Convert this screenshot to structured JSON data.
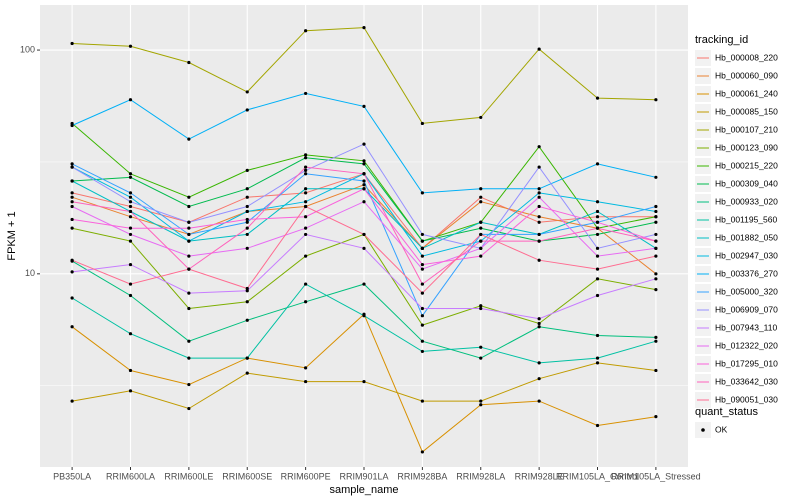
{
  "chart_data": {
    "type": "line",
    "x_label": "sample_name",
    "y_label": "FPKM + 1",
    "categories": [
      "PB350LA",
      "RRIM600LA",
      "RRIM600LE",
      "RRIM600SE",
      "RRIM600PE",
      "RRIM901LA",
      "RRIM928BA",
      "RRIM928LA",
      "RRIM928LE",
      "RRIM105LA_Control",
      "RRIM105LA_Stressed"
    ],
    "log_y": true,
    "ylim": [
      1.37,
      159
    ],
    "yticks": [
      10,
      100
    ],
    "grid": true,
    "legend_title": "tracking_id",
    "legend_position": "right",
    "legend2": {
      "title": "quant_status",
      "labels": [
        "OK"
      ]
    },
    "series": [
      {
        "name": "Hb_000008_220",
        "color": "#F8766D",
        "values": [
          23,
          20,
          17,
          22,
          23,
          28,
          13,
          22,
          17,
          18,
          18
        ]
      },
      {
        "name": "Hb_000060_090",
        "color": "#EA8331",
        "values": [
          22,
          18,
          15,
          19,
          20,
          25,
          13,
          21,
          18,
          16,
          10
        ]
      },
      {
        "name": "Hb_000061_240",
        "color": "#D89000",
        "values": [
          5.8,
          3.7,
          3.2,
          4.2,
          3.8,
          6.6,
          1.6,
          2.6,
          2.7,
          2.1,
          2.3
        ]
      },
      {
        "name": "Hb_000085_150",
        "color": "#C09B00",
        "values": [
          2.7,
          3.0,
          2.5,
          3.6,
          3.3,
          3.3,
          2.7,
          2.7,
          3.4,
          4.0,
          3.7
        ]
      },
      {
        "name": "Hb_000107_210",
        "color": "#A3A500",
        "values": [
          107,
          104,
          88,
          65,
          122,
          126,
          47,
          50,
          101,
          61,
          60
        ]
      },
      {
        "name": "Hb_000123_090",
        "color": "#7CAE00",
        "values": [
          16,
          14,
          7.0,
          7.5,
          12,
          15,
          5.9,
          7.2,
          6.0,
          9.5,
          8.5
        ]
      },
      {
        "name": "Hb_000215_220",
        "color": "#39B600",
        "values": [
          47,
          28,
          22,
          29,
          34,
          32,
          14,
          17,
          37,
          16,
          18
        ]
      },
      {
        "name": "Hb_000309_040",
        "color": "#00BB4E",
        "values": [
          26,
          27,
          20,
          24,
          33,
          31,
          14,
          16,
          14,
          15,
          17
        ]
      },
      {
        "name": "Hb_000933_020",
        "color": "#00BF7D",
        "values": [
          11.4,
          8.0,
          5.0,
          6.2,
          7.5,
          9.0,
          5.0,
          4.2,
          5.8,
          5.3,
          5.2
        ]
      },
      {
        "name": "Hb_001195_560",
        "color": "#00C1A3",
        "values": [
          7.8,
          5.4,
          4.2,
          4.2,
          9.0,
          6.5,
          4.5,
          4.7,
          4.0,
          4.2,
          5.0
        ]
      },
      {
        "name": "Hb_001882_050",
        "color": "#00BFC4",
        "values": [
          26,
          19,
          14,
          15,
          24,
          24,
          13,
          17,
          15,
          19,
          13
        ]
      },
      {
        "name": "Hb_002947_030",
        "color": "#00BAE0",
        "values": [
          30,
          22,
          14,
          19,
          21,
          28,
          12,
          14,
          23,
          21,
          19
        ]
      },
      {
        "name": "Hb_003376_270",
        "color": "#00B0F6",
        "values": [
          46,
          60,
          40,
          54,
          64,
          56,
          23,
          24,
          24,
          31,
          27
        ]
      },
      {
        "name": "Hb_005000_320",
        "color": "#35A2FF",
        "values": [
          31,
          23,
          15,
          17,
          28,
          26,
          6.5,
          15,
          15,
          17,
          20
        ]
      },
      {
        "name": "Hb_006909_070",
        "color": "#9590FF",
        "values": [
          30,
          21,
          17,
          20,
          29,
          38,
          15,
          13,
          30,
          13,
          15
        ]
      },
      {
        "name": "Hb_007943_110",
        "color": "#C77CFF",
        "values": [
          10.2,
          11,
          8.2,
          8.4,
          15,
          13,
          7.0,
          7.0,
          6.3,
          8.0,
          9.5
        ]
      },
      {
        "name": "Hb_012322_020",
        "color": "#E76BF3",
        "values": [
          20,
          15,
          12,
          13,
          16,
          21,
          10.5,
          13,
          22,
          12,
          13
        ]
      },
      {
        "name": "Hb_017295_010",
        "color": "#FA62DB",
        "values": [
          17.5,
          16,
          16,
          17.5,
          18,
          24,
          11,
          12,
          20,
          17,
          14
        ]
      },
      {
        "name": "Hb_033642_030",
        "color": "#FF62BC",
        "values": [
          21,
          19,
          10.5,
          16,
          30,
          28,
          9,
          14,
          14,
          16,
          14
        ]
      },
      {
        "name": "Hb_090051_030",
        "color": "#FF6C91",
        "values": [
          11.5,
          9,
          10.5,
          8.6,
          20,
          15,
          8.2,
          15,
          11.5,
          10.5,
          12
        ]
      }
    ]
  }
}
